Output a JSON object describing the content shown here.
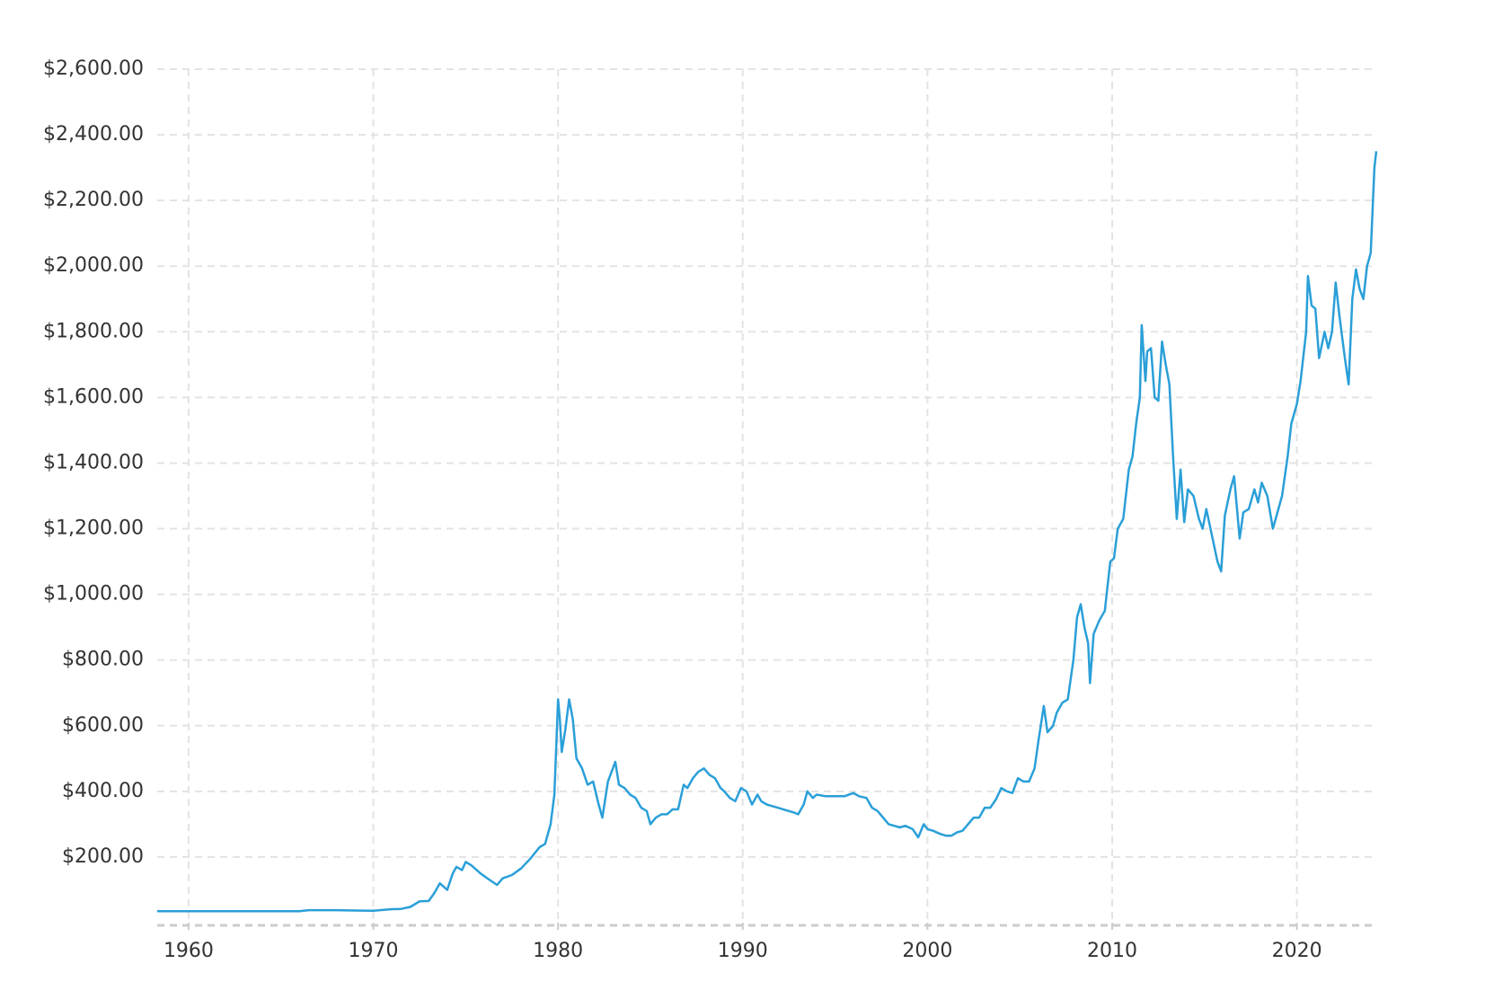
{
  "chart_data": {
    "type": "line",
    "color": "#2a9fd8",
    "grid": true,
    "xlim": [
      1958.3,
      2024.3
    ],
    "xticks": [
      1960,
      1970,
      1980,
      1990,
      2000,
      2010,
      2020
    ],
    "ylim": [
      0,
      2600
    ],
    "yticks": [
      {
        "value": 200,
        "label": "$200.00"
      },
      {
        "value": 400,
        "label": "$400.00"
      },
      {
        "value": 600,
        "label": "$600.00"
      },
      {
        "value": 800,
        "label": "$800.00"
      },
      {
        "value": 1000,
        "label": "$1,000.00"
      },
      {
        "value": 1200,
        "label": "$1,200.00"
      },
      {
        "value": 1400,
        "label": "$1,400.00"
      },
      {
        "value": 1600,
        "label": "$1,600.00"
      },
      {
        "value": 1800,
        "label": "$1,800.00"
      },
      {
        "value": 2000,
        "label": "$2,000.00"
      },
      {
        "value": 2200,
        "label": "$2,200.00"
      },
      {
        "value": 2400,
        "label": "$2,400.00"
      },
      {
        "value": 2600,
        "label": "$2,600.00"
      }
    ],
    "x": [
      1958.3,
      1966,
      1966.5,
      1968,
      1969,
      1970,
      1971,
      1971.5,
      1972,
      1972.5,
      1973,
      1973.3,
      1973.6,
      1974,
      1974.3,
      1974.5,
      1974.8,
      1975,
      1975.3,
      1975.8,
      1976.3,
      1976.7,
      1977,
      1977.5,
      1978,
      1978.5,
      1979,
      1979.3,
      1979.6,
      1979.8,
      1980,
      1980.1,
      1980.2,
      1980.4,
      1980.6,
      1980.8,
      1981,
      1981.3,
      1981.6,
      1981.9,
      1982.2,
      1982.4,
      1982.7,
      1982.9,
      1983.1,
      1983.3,
      1983.6,
      1983.9,
      1984.2,
      1984.5,
      1984.8,
      1985,
      1985.3,
      1985.6,
      1985.9,
      1986.2,
      1986.5,
      1986.8,
      1987,
      1987.3,
      1987.6,
      1987.9,
      1988.2,
      1988.5,
      1988.8,
      1989,
      1989.3,
      1989.6,
      1989.9,
      1990.2,
      1990.5,
      1990.8,
      1991,
      1991.3,
      1991.6,
      1991.9,
      1992.2,
      1992.5,
      1992.8,
      1993,
      1993.3,
      1993.5,
      1993.8,
      1994,
      1994.5,
      1995,
      1995.5,
      1996,
      1996.3,
      1996.7,
      1997,
      1997.3,
      1997.6,
      1997.9,
      1998.2,
      1998.5,
      1998.8,
      1999.2,
      1999.5,
      1999.8,
      2000,
      2000.3,
      2000.7,
      2001,
      2001.3,
      2001.6,
      2001.9,
      2002.2,
      2002.5,
      2002.8,
      2003.1,
      2003.4,
      2003.7,
      2004,
      2004.3,
      2004.6,
      2004.9,
      2005.2,
      2005.5,
      2005.8,
      2006,
      2006.3,
      2006.5,
      2006.8,
      2007,
      2007.3,
      2007.6,
      2007.9,
      2008.1,
      2008.3,
      2008.5,
      2008.7,
      2008.8,
      2009,
      2009.3,
      2009.6,
      2009.9,
      2010.1,
      2010.3,
      2010.6,
      2010.9,
      2011.1,
      2011.3,
      2011.5,
      2011.6,
      2011.8,
      2011.9,
      2012.1,
      2012.3,
      2012.5,
      2012.7,
      2012.9,
      2013.1,
      2013.3,
      2013.5,
      2013.7,
      2013.9,
      2014.1,
      2014.4,
      2014.7,
      2014.9,
      2015.1,
      2015.4,
      2015.7,
      2015.9,
      2016.1,
      2016.4,
      2016.6,
      2016.9,
      2017.1,
      2017.4,
      2017.7,
      2017.9,
      2018.1,
      2018.4,
      2018.7,
      2018.9,
      2019.2,
      2019.5,
      2019.7,
      2020,
      2020.2,
      2020.5,
      2020.6,
      2020.8,
      2021,
      2021.2,
      2021.5,
      2021.7,
      2021.9,
      2022.1,
      2022.3,
      2022.6,
      2022.8,
      2023,
      2023.2,
      2023.4,
      2023.6,
      2023.8,
      2024,
      2024.2,
      2024.3
    ],
    "values": [
      35,
      35,
      38,
      38,
      37,
      36,
      41,
      42,
      48,
      65,
      66,
      90,
      120,
      100,
      150,
      170,
      160,
      185,
      175,
      150,
      130,
      115,
      135,
      145,
      165,
      195,
      230,
      240,
      300,
      390,
      680,
      620,
      520,
      590,
      680,
      620,
      500,
      470,
      420,
      430,
      360,
      320,
      430,
      460,
      490,
      420,
      410,
      390,
      380,
      350,
      340,
      300,
      320,
      330,
      330,
      345,
      345,
      420,
      410,
      440,
      460,
      470,
      450,
      440,
      410,
      400,
      380,
      370,
      410,
      400,
      360,
      390,
      370,
      360,
      355,
      350,
      345,
      340,
      335,
      330,
      360,
      400,
      380,
      390,
      385,
      385,
      385,
      395,
      385,
      380,
      350,
      340,
      320,
      300,
      295,
      290,
      295,
      285,
      260,
      300,
      285,
      280,
      270,
      265,
      265,
      275,
      280,
      300,
      320,
      320,
      350,
      350,
      375,
      410,
      400,
      395,
      440,
      430,
      430,
      470,
      550,
      660,
      580,
      600,
      640,
      670,
      680,
      800,
      930,
      970,
      900,
      850,
      730,
      880,
      920,
      950,
      1100,
      1110,
      1200,
      1230,
      1380,
      1420,
      1520,
      1600,
      1820,
      1650,
      1740,
      1750,
      1600,
      1590,
      1770,
      1700,
      1640,
      1420,
      1230,
      1380,
      1220,
      1320,
      1300,
      1230,
      1200,
      1260,
      1180,
      1100,
      1070,
      1240,
      1320,
      1360,
      1170,
      1250,
      1260,
      1320,
      1280,
      1340,
      1300,
      1200,
      1240,
      1300,
      1420,
      1520,
      1580,
      1650,
      1800,
      1970,
      1880,
      1870,
      1720,
      1800,
      1750,
      1800,
      1950,
      1850,
      1720,
      1640,
      1900,
      1990,
      1930,
      1900,
      2000,
      2040,
      2300,
      2350
    ]
  }
}
